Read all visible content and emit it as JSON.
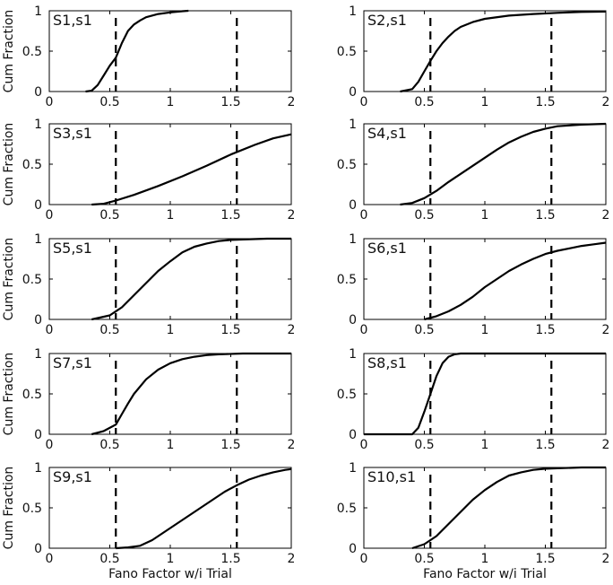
{
  "figure": {
    "ylabel": "Cum Fraction",
    "xlabel": "Fano Factor w/i Trial"
  },
  "chart_data": [
    {
      "type": "line",
      "title": "S1,s1",
      "xlim": [
        0,
        2
      ],
      "ylim": [
        0,
        1
      ],
      "xticks": [
        "0",
        "0.5",
        "1",
        "1.5",
        "2"
      ],
      "yticks": [
        "0",
        "0.5",
        "1"
      ],
      "vlines": [
        0.55,
        1.55
      ],
      "grid": false,
      "series": [
        {
          "x": [
            0.3,
            0.35,
            0.4,
            0.45,
            0.5,
            0.55,
            0.6,
            0.65,
            0.7,
            0.75,
            0.8,
            0.9,
            1.0,
            1.1,
            1.15
          ],
          "y": [
            0.0,
            0.01,
            0.08,
            0.2,
            0.32,
            0.42,
            0.6,
            0.75,
            0.83,
            0.88,
            0.92,
            0.96,
            0.98,
            0.995,
            1.0
          ]
        }
      ]
    },
    {
      "type": "line",
      "title": "S2,s1",
      "xlim": [
        0,
        2
      ],
      "ylim": [
        0,
        1
      ],
      "xticks": [
        "0",
        "0.5",
        "1",
        "1.5",
        "2"
      ],
      "yticks": [
        "0",
        "0.5",
        "1"
      ],
      "vlines": [
        0.55,
        1.55
      ],
      "grid": false,
      "series": [
        {
          "x": [
            0.3,
            0.4,
            0.45,
            0.5,
            0.55,
            0.6,
            0.65,
            0.7,
            0.75,
            0.8,
            0.9,
            1.0,
            1.2,
            1.4,
            1.6,
            1.8,
            2.0
          ],
          "y": [
            0.0,
            0.03,
            0.12,
            0.25,
            0.38,
            0.5,
            0.6,
            0.68,
            0.75,
            0.8,
            0.86,
            0.9,
            0.94,
            0.96,
            0.975,
            0.985,
            0.99
          ]
        }
      ]
    },
    {
      "type": "line",
      "title": "S3,s1",
      "xlim": [
        0,
        2
      ],
      "ylim": [
        0,
        1
      ],
      "xticks": [
        "0",
        "0.5",
        "1",
        "1.5",
        "2"
      ],
      "yticks": [
        "0",
        "0.5",
        "1"
      ],
      "vlines": [
        0.55,
        1.55
      ],
      "grid": false,
      "series": [
        {
          "x": [
            0.35,
            0.45,
            0.55,
            0.7,
            0.9,
            1.1,
            1.3,
            1.5,
            1.7,
            1.85,
            2.0
          ],
          "y": [
            0.0,
            0.01,
            0.05,
            0.12,
            0.23,
            0.35,
            0.48,
            0.62,
            0.74,
            0.82,
            0.87
          ]
        }
      ]
    },
    {
      "type": "line",
      "title": "S4,s1",
      "xlim": [
        0,
        2
      ],
      "ylim": [
        0,
        1
      ],
      "xticks": [
        "0",
        "0.5",
        "1",
        "1.5",
        "2"
      ],
      "yticks": [
        "0",
        "0.5",
        "1"
      ],
      "vlines": [
        0.55,
        1.55
      ],
      "grid": false,
      "series": [
        {
          "x": [
            0.3,
            0.4,
            0.5,
            0.6,
            0.7,
            0.8,
            0.9,
            1.0,
            1.1,
            1.2,
            1.3,
            1.4,
            1.5,
            1.6,
            1.7,
            1.8,
            2.0
          ],
          "y": [
            0.0,
            0.02,
            0.08,
            0.17,
            0.28,
            0.38,
            0.48,
            0.58,
            0.68,
            0.77,
            0.84,
            0.9,
            0.94,
            0.97,
            0.98,
            0.99,
            1.0
          ]
        }
      ]
    },
    {
      "type": "line",
      "title": "S5,s1",
      "xlim": [
        0,
        2
      ],
      "ylim": [
        0,
        1
      ],
      "xticks": [
        "0",
        "0.5",
        "1",
        "1.5",
        "2"
      ],
      "yticks": [
        "0",
        "0.5",
        "1"
      ],
      "vlines": [
        0.55,
        1.55
      ],
      "grid": false,
      "series": [
        {
          "x": [
            0.35,
            0.5,
            0.6,
            0.7,
            0.8,
            0.9,
            1.0,
            1.1,
            1.2,
            1.3,
            1.4,
            1.5,
            1.6,
            1.8,
            2.0
          ],
          "y": [
            0.0,
            0.05,
            0.15,
            0.3,
            0.45,
            0.6,
            0.72,
            0.83,
            0.9,
            0.94,
            0.97,
            0.985,
            0.99,
            1.0,
            1.0
          ]
        }
      ]
    },
    {
      "type": "line",
      "title": "S6,s1",
      "xlim": [
        0,
        2
      ],
      "ylim": [
        0,
        1
      ],
      "xticks": [
        "0",
        "0.5",
        "1",
        "1.5",
        "2"
      ],
      "yticks": [
        "0",
        "0.5",
        "1"
      ],
      "vlines": [
        0.55,
        1.55
      ],
      "grid": false,
      "series": [
        {
          "x": [
            0.5,
            0.6,
            0.7,
            0.8,
            0.9,
            1.0,
            1.1,
            1.2,
            1.3,
            1.4,
            1.5,
            1.6,
            1.7,
            1.8,
            1.9,
            2.0
          ],
          "y": [
            0.0,
            0.04,
            0.1,
            0.18,
            0.28,
            0.4,
            0.5,
            0.6,
            0.68,
            0.75,
            0.81,
            0.85,
            0.88,
            0.91,
            0.93,
            0.95
          ]
        }
      ]
    },
    {
      "type": "line",
      "title": "S7,s1",
      "xlim": [
        0,
        2
      ],
      "ylim": [
        0,
        1
      ],
      "xticks": [
        "0",
        "0.5",
        "1",
        "1.5",
        "2"
      ],
      "yticks": [
        "0",
        "0.5",
        "1"
      ],
      "vlines": [
        0.55,
        1.55
      ],
      "grid": false,
      "series": [
        {
          "x": [
            0.35,
            0.45,
            0.55,
            0.6,
            0.65,
            0.7,
            0.8,
            0.9,
            1.0,
            1.1,
            1.2,
            1.3,
            1.4,
            1.6,
            1.8,
            2.0
          ],
          "y": [
            0.0,
            0.04,
            0.12,
            0.25,
            0.38,
            0.5,
            0.68,
            0.8,
            0.88,
            0.93,
            0.96,
            0.98,
            0.99,
            1.0,
            1.0,
            1.0
          ]
        }
      ]
    },
    {
      "type": "line",
      "title": "S8,s1",
      "xlim": [
        0,
        2
      ],
      "ylim": [
        0,
        1
      ],
      "xticks": [
        "0",
        "0.5",
        "1",
        "1.5",
        "2"
      ],
      "yticks": [
        "0",
        "0.5",
        "1"
      ],
      "vlines": [
        0.55,
        1.55
      ],
      "grid": false,
      "series": [
        {
          "x": [
            0.0,
            0.4,
            0.45,
            0.5,
            0.55,
            0.6,
            0.65,
            0.7,
            0.75,
            0.8,
            0.9,
            1.2,
            1.6,
            2.0
          ],
          "y": [
            0.0,
            0.0,
            0.08,
            0.28,
            0.5,
            0.72,
            0.88,
            0.96,
            0.99,
            1.0,
            1.0,
            1.0,
            1.0,
            1.0
          ]
        }
      ]
    },
    {
      "type": "line",
      "title": "S9,s1",
      "xlim": [
        0,
        2
      ],
      "ylim": [
        0,
        1
      ],
      "xticks": [
        "0",
        "0.5",
        "1",
        "1.5",
        "2"
      ],
      "yticks": [
        "0",
        "0.5",
        "1"
      ],
      "vlines": [
        0.55,
        1.55
      ],
      "grid": false,
      "series": [
        {
          "x": [
            0.55,
            0.65,
            0.75,
            0.85,
            0.95,
            1.05,
            1.15,
            1.25,
            1.35,
            1.45,
            1.55,
            1.65,
            1.75,
            1.85,
            1.95,
            2.0
          ],
          "y": [
            0.0,
            0.01,
            0.03,
            0.1,
            0.2,
            0.3,
            0.4,
            0.5,
            0.6,
            0.7,
            0.78,
            0.85,
            0.9,
            0.94,
            0.97,
            0.98
          ]
        }
      ]
    },
    {
      "type": "line",
      "title": "S10,s1",
      "xlim": [
        0,
        2
      ],
      "ylim": [
        0,
        1
      ],
      "xticks": [
        "0",
        "0.5",
        "1",
        "1.5",
        "2"
      ],
      "yticks": [
        "0",
        "0.5",
        "1"
      ],
      "vlines": [
        0.55,
        1.55
      ],
      "grid": false,
      "series": [
        {
          "x": [
            0.4,
            0.5,
            0.6,
            0.7,
            0.8,
            0.9,
            1.0,
            1.1,
            1.2,
            1.3,
            1.4,
            1.5,
            1.6,
            1.8,
            2.0
          ],
          "y": [
            0.0,
            0.05,
            0.15,
            0.3,
            0.45,
            0.6,
            0.72,
            0.82,
            0.9,
            0.94,
            0.97,
            0.985,
            0.99,
            1.0,
            1.0
          ]
        }
      ]
    }
  ]
}
